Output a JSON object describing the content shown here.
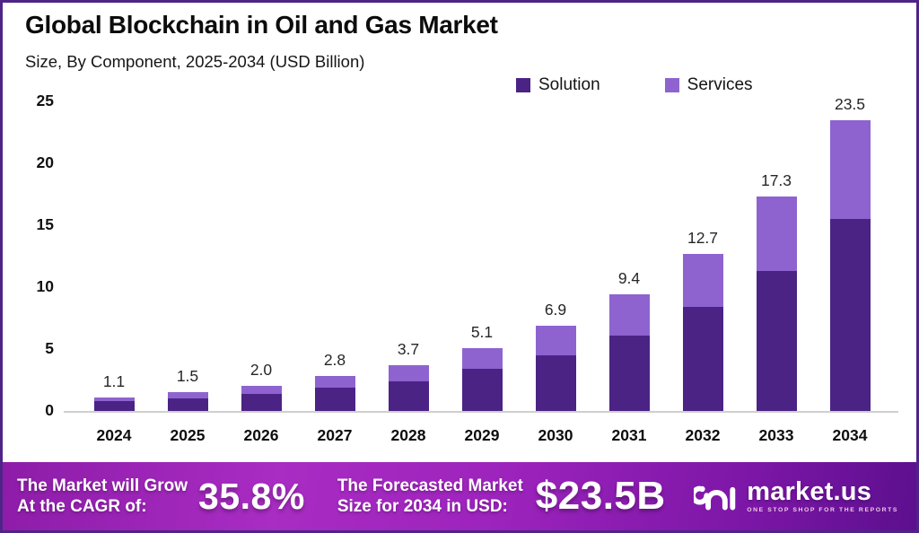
{
  "title": "Global Blockchain in Oil and Gas Market",
  "subtitle": "Size, By Component, 2025-2034 (USD Billion)",
  "legend": {
    "items": [
      {
        "label": "Solution",
        "color": "#4b2385"
      },
      {
        "label": "Services",
        "color": "#8e63d0"
      }
    ]
  },
  "chart_data": {
    "type": "bar",
    "stacked": true,
    "title": "Global Blockchain in Oil and Gas Market",
    "subtitle": "Size, By Component, 2025-2034 (USD Billion)",
    "categories": [
      "2024",
      "2025",
      "2026",
      "2027",
      "2028",
      "2029",
      "2030",
      "2031",
      "2032",
      "2033",
      "2034"
    ],
    "series": [
      {
        "name": "Solution",
        "color": "#4b2385",
        "values": [
          0.8,
          1.0,
          1.4,
          1.9,
          2.4,
          3.4,
          4.5,
          6.1,
          8.4,
          11.3,
          15.5
        ]
      },
      {
        "name": "Services",
        "color": "#8e63d0",
        "values": [
          0.3,
          0.5,
          0.6,
          0.9,
          1.3,
          1.7,
          2.4,
          3.3,
          4.3,
          6.0,
          8.0
        ]
      }
    ],
    "total_labels": [
      "1.1",
      "1.5",
      "2.0",
      "2.8",
      "3.7",
      "5.1",
      "6.9",
      "9.4",
      "12.7",
      "17.3",
      "23.5"
    ],
    "xlabel": "",
    "ylabel": "",
    "yticks": [
      0,
      5,
      10,
      15,
      20,
      25
    ],
    "ylim": [
      0,
      25
    ],
    "grid": false,
    "legend_position": "top-right"
  },
  "footer": {
    "cagr_label_line1": "The Market will Grow",
    "cagr_label_line2": "At the CAGR of:",
    "cagr_value": "35.8%",
    "forecast_label_line1": "The Forecasted Market",
    "forecast_label_line2": "Size for 2034 in USD:",
    "forecast_value": "$23.5B",
    "brand_name": "market.us",
    "brand_tagline": "ONE STOP SHOP FOR THE REPORTS"
  },
  "colors": {
    "frame_border": "#4e2488",
    "solution": "#4b2385",
    "services": "#8e63d0",
    "footer_gradient_start": "#a92cc3",
    "footer_gradient_end": "#5c0f8e",
    "axis_line": "#cfcfcf"
  }
}
